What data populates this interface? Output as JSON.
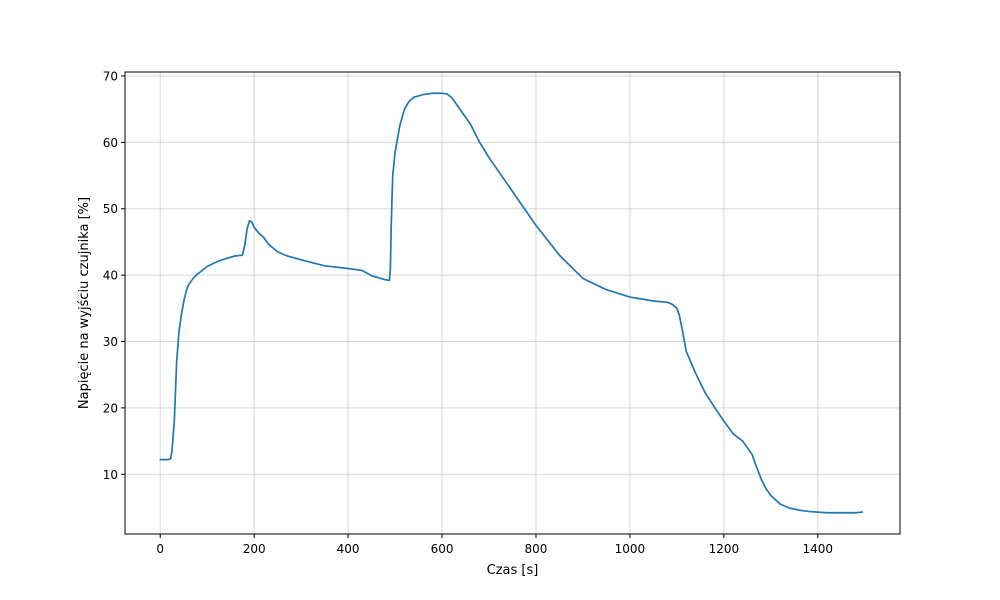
{
  "chart_data": {
    "type": "line",
    "title": "",
    "xlabel": "Czas [s]",
    "ylabel": "Napięcie na wyjściu czujnika [%]",
    "xlim": [
      -75,
      1575
    ],
    "ylim": [
      1.0,
      70.6
    ],
    "xticks": [
      0,
      200,
      400,
      600,
      800,
      1000,
      1200,
      1400
    ],
    "yticks": [
      10,
      20,
      30,
      40,
      50,
      60,
      70
    ],
    "grid": true,
    "series": [
      {
        "name": "sensor",
        "color": "#1f77b4",
        "x": [
          0,
          15,
          22,
          25,
          30,
          35,
          40,
          45,
          50,
          55,
          60,
          70,
          80,
          100,
          120,
          140,
          160,
          175,
          180,
          185,
          190,
          195,
          200,
          210,
          220,
          230,
          250,
          270,
          300,
          350,
          400,
          430,
          440,
          450,
          460,
          470,
          480,
          488,
          490,
          492,
          495,
          500,
          510,
          520,
          530,
          540,
          560,
          580,
          600,
          610,
          620,
          630,
          640,
          660,
          680,
          700,
          750,
          800,
          850,
          900,
          950,
          1000,
          1050,
          1080,
          1090,
          1100,
          1105,
          1110,
          1120,
          1140,
          1160,
          1180,
          1200,
          1220,
          1240,
          1260,
          1270,
          1280,
          1290,
          1300,
          1320,
          1340,
          1360,
          1380,
          1400,
          1420,
          1440,
          1460,
          1480,
          1495
        ],
        "y": [
          12.2,
          12.2,
          12.3,
          13.5,
          18.0,
          27.0,
          31.5,
          34.0,
          36.0,
          37.5,
          38.5,
          39.5,
          40.2,
          41.3,
          42.0,
          42.5,
          42.9,
          43.0,
          44.5,
          47.0,
          48.2,
          48.0,
          47.2,
          46.3,
          45.7,
          44.7,
          43.5,
          42.9,
          42.3,
          41.4,
          41.0,
          40.7,
          40.3,
          39.9,
          39.7,
          39.5,
          39.3,
          39.2,
          41.0,
          48.0,
          55.0,
          58.5,
          62.5,
          65.0,
          66.2,
          66.8,
          67.2,
          67.4,
          67.4,
          67.3,
          66.8,
          65.8,
          64.8,
          62.8,
          60.0,
          57.7,
          52.6,
          47.5,
          43.0,
          39.5,
          37.8,
          36.7,
          36.1,
          35.9,
          35.6,
          35.0,
          34.0,
          32.3,
          28.5,
          25.2,
          22.3,
          20.1,
          18.0,
          16.1,
          15.0,
          13.0,
          11.0,
          9.2,
          7.8,
          6.8,
          5.5,
          4.9,
          4.6,
          4.4,
          4.3,
          4.2,
          4.2,
          4.2,
          4.2,
          4.3
        ]
      }
    ]
  }
}
